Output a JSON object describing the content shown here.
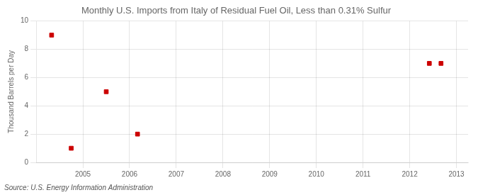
{
  "chart_data": {
    "type": "scatter",
    "title": "Monthly U.S. Imports from Italy of Residual Fuel Oil, Less than 0.31% Sulfur",
    "ylabel": "Thousand Barrels per Day",
    "annotations": [
      "Source: U.S. Energy Information Administration"
    ],
    "x": [
      2004.33,
      2004.75,
      2005.5,
      2006.17,
      2012.42,
      2012.67
    ],
    "values": [
      9,
      1,
      5,
      2,
      7,
      7
    ],
    "color": "#cc0000",
    "marker": "square",
    "xlim": [
      2004.0,
      2013.25
    ],
    "ylim": [
      0,
      10
    ],
    "xticks": [
      2005,
      2006,
      2007,
      2008,
      2009,
      2010,
      2011,
      2012,
      2013
    ],
    "yticks": [
      0,
      2,
      4,
      6,
      8,
      10
    ],
    "grid": true
  }
}
